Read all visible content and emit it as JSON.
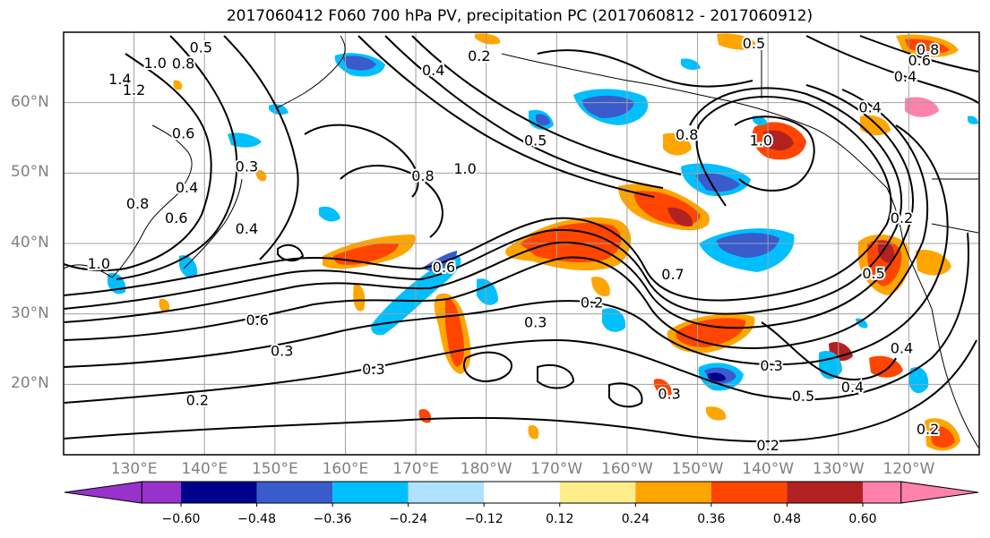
{
  "title": "2017060412 F060 700 hPa PV, precipitation PC (2017060812 - 2017060912)",
  "lat_labels": [
    {
      "text": "60°N",
      "lat": 60
    },
    {
      "text": "50°N",
      "lat": 50
    },
    {
      "text": "40°N",
      "lat": 40
    },
    {
      "text": "30°N",
      "lat": 30
    },
    {
      "text": "20°N",
      "lat": 20
    }
  ],
  "lon_labels": [
    {
      "text": "130°E",
      "lon": 130
    },
    {
      "text": "140°E",
      "lon": 140
    },
    {
      "text": "150°E",
      "lon": 150
    },
    {
      "text": "160°E",
      "lon": 160
    },
    {
      "text": "170°E",
      "lon": 170
    },
    {
      "text": "180°W",
      "lon": 180
    },
    {
      "text": "170°W",
      "lon": 190
    },
    {
      "text": "160°W",
      "lon": 200
    },
    {
      "text": "150°W",
      "lon": 210
    },
    {
      "text": "140°W",
      "lon": 220
    },
    {
      "text": "130°W",
      "lon": 230
    },
    {
      "text": "120°W",
      "lon": 240
    }
  ],
  "extent": {
    "lon_min": 120,
    "lon_max": 250,
    "lat_min": 10,
    "lat_max": 70
  },
  "colorbar": {
    "colors": [
      "#9932cc",
      "#00008b",
      "#3a5bcc",
      "#00bfff",
      "#b0e2ff",
      "#ffffff",
      "#ffec8b",
      "#ffa500",
      "#ff4500",
      "#b22222",
      "#ff82ab"
    ],
    "tick_labels": [
      "−0.60",
      "−0.48",
      "−0.36",
      "−0.24",
      "−0.12",
      "0.12",
      "0.24",
      "0.36",
      "0.48",
      "0.60"
    ]
  },
  "contour_labels": [
    {
      "text": "0.5",
      "lon": 139.5,
      "lat": 67.7
    },
    {
      "text": "1.0",
      "lon": 133,
      "lat": 65.5
    },
    {
      "text": "0.8",
      "lon": 137,
      "lat": 65.4
    },
    {
      "text": "1.4",
      "lon": 128,
      "lat": 63.2
    },
    {
      "text": "1.2",
      "lon": 130,
      "lat": 61.7
    },
    {
      "text": "0.3",
      "lon": 146,
      "lat": 50.8
    },
    {
      "text": "0.4",
      "lon": 146,
      "lat": 42
    },
    {
      "text": "1.0",
      "lon": 125,
      "lat": 37
    },
    {
      "text": "0.6",
      "lon": 147.5,
      "lat": 29
    },
    {
      "text": "0.3",
      "lon": 151,
      "lat": 24.6
    },
    {
      "text": "0.2",
      "lon": 139,
      "lat": 17.6
    },
    {
      "text": "0.3",
      "lon": 164,
      "lat": 22
    },
    {
      "text": "0.3",
      "lon": 187,
      "lat": 28.7
    },
    {
      "text": "0.6",
      "lon": 174,
      "lat": 36.5
    },
    {
      "text": "0.8",
      "lon": 171,
      "lat": 49.5
    },
    {
      "text": "1.0",
      "lon": 177,
      "lat": 50.5
    },
    {
      "text": "0.5",
      "lon": 187,
      "lat": 54.5
    },
    {
      "text": "0.4",
      "lon": 172.5,
      "lat": 64.5
    },
    {
      "text": "0.2",
      "lon": 179,
      "lat": 66.5
    },
    {
      "text": "0.8",
      "lon": 208.5,
      "lat": 55.3
    },
    {
      "text": "1.0",
      "lon": 219,
      "lat": 54.5
    },
    {
      "text": "0.7",
      "lon": 206.5,
      "lat": 35.5
    },
    {
      "text": "0.2",
      "lon": 195,
      "lat": 31.5
    },
    {
      "text": "0.3",
      "lon": 220.5,
      "lat": 22.5
    },
    {
      "text": "0.3",
      "lon": 206,
      "lat": 18.5
    },
    {
      "text": "0.5",
      "lon": 225,
      "lat": 18.2
    },
    {
      "text": "0.4",
      "lon": 232,
      "lat": 19.5
    },
    {
      "text": "0.2",
      "lon": 220,
      "lat": 11.2
    },
    {
      "text": "0.5",
      "lon": 218,
      "lat": 68.3
    },
    {
      "text": "0.8",
      "lon": 242.7,
      "lat": 67.4
    },
    {
      "text": "0.6",
      "lon": 241.5,
      "lat": 65.9
    },
    {
      "text": "0.4",
      "lon": 239.5,
      "lat": 63.6
    },
    {
      "text": "0.4",
      "lon": 234.5,
      "lat": 59.2
    },
    {
      "text": "0.2",
      "lon": 239,
      "lat": 43.5
    },
    {
      "text": "0.5",
      "lon": 235,
      "lat": 35.6
    },
    {
      "text": "0.4",
      "lon": 239,
      "lat": 25
    },
    {
      "text": "0.2",
      "lon": 242.7,
      "lat": 13.5
    },
    {
      "text": "0.4",
      "lon": 137.5,
      "lat": 47.8
    },
    {
      "text": "0.6",
      "lon": 137,
      "lat": 55.5
    },
    {
      "text": "0.8",
      "lon": 130.5,
      "lat": 45.5
    },
    {
      "text": "0.6",
      "lon": 136,
      "lat": 43.5
    }
  ]
}
